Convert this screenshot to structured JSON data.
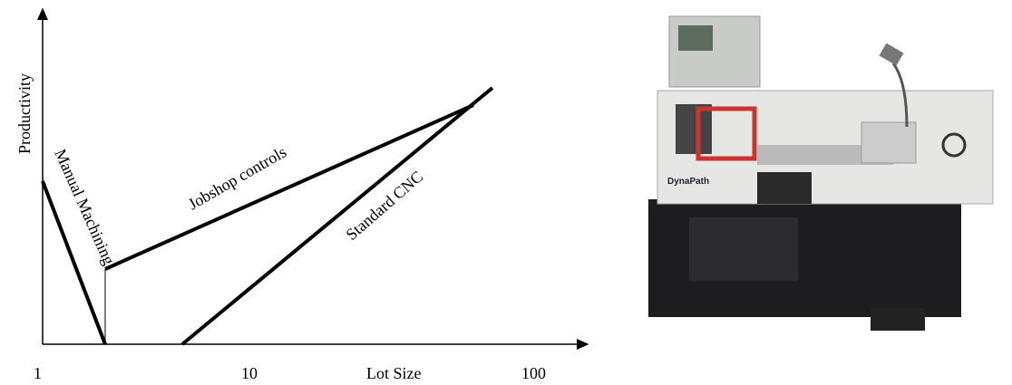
{
  "diagram": {
    "y_axis_label": "Productivity",
    "x_axis_label": "Lot Size",
    "x_ticks": [
      "1",
      "10",
      "100"
    ],
    "lines": [
      {
        "label": "Manual Machining"
      },
      {
        "label": "Jobshop controls"
      },
      {
        "label": "Standard CNC"
      }
    ]
  },
  "photo": {
    "brand": "DynaPath"
  }
}
